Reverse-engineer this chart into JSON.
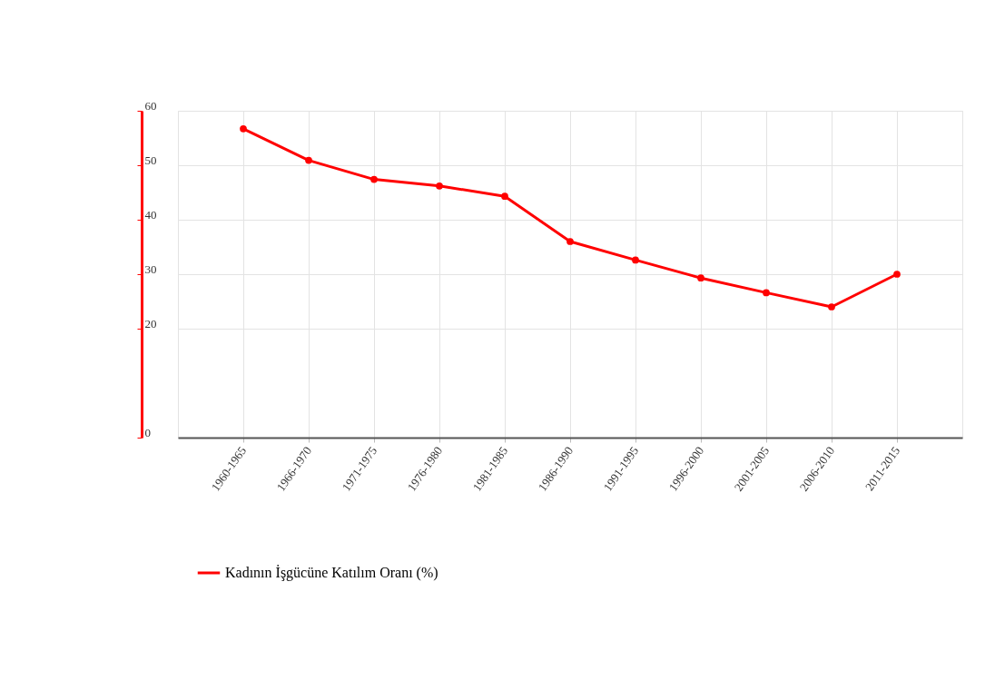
{
  "chart_data": {
    "type": "line",
    "categories": [
      "1960-1965",
      "1966-1970",
      "1971-1975",
      "1976-1980",
      "1981-1985",
      "1986-1990",
      "1991-1995",
      "1996-2000",
      "2001-2005",
      "2006-2010",
      "2011-2015"
    ],
    "series": [
      {
        "name": "Kadının İşgücüne Katılım Oranı (%)",
        "color": "#ff0000",
        "values": [
          56.7,
          50.9,
          47.4,
          46.2,
          44.3,
          36.0,
          32.6,
          29.3,
          26.6,
          24.0,
          30.0
        ]
      }
    ],
    "ylim": [
      0,
      60
    ],
    "yticks": [
      0,
      20,
      30,
      40,
      50,
      60
    ],
    "grid": true,
    "legend": "bottom left",
    "marker": "circle",
    "line_style": "solid"
  }
}
